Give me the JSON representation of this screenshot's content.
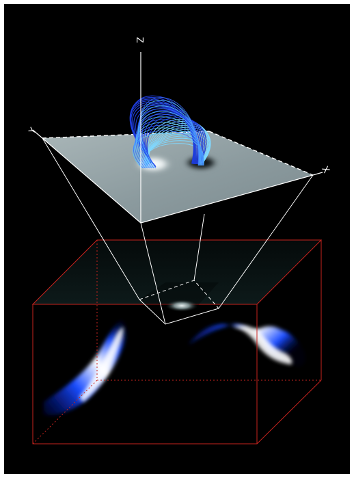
{
  "axes": {
    "z_label": "Z",
    "y_label": "Y",
    "x_label": "X"
  },
  "colors": {
    "background": "#000000",
    "frame": "#ffffff",
    "plane": "#8f9ea2",
    "box_edge": "#c8231e",
    "field_line_outer": "#1e3cdc",
    "field_line_inner": "#7fd8ff",
    "emission": "#2040ff"
  }
}
